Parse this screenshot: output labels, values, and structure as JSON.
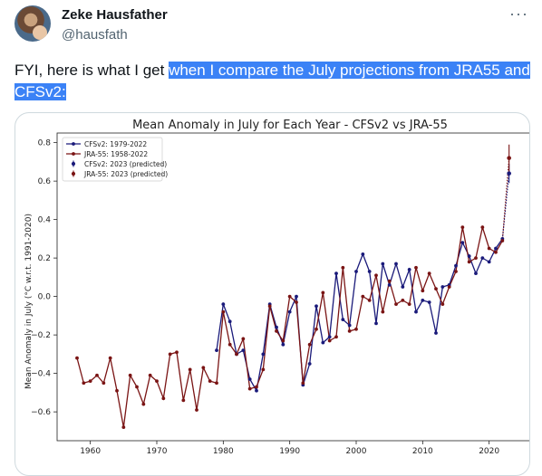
{
  "author": {
    "name": "Zeke Hausfather",
    "handle": "@hausfath"
  },
  "tweet": {
    "text_before": "FYI, here is what I get ",
    "text_highlight": "when I compare the July projections from JRA55 and CFSv2:"
  },
  "icons": {
    "more": "more-options-icon"
  },
  "colors": {
    "cfs": "#1a1a7a",
    "jra": "#7a1414"
  },
  "chart_data": {
    "type": "line",
    "title": "Mean Anomaly in July for Each Year - CFSv2 vs JRA-55",
    "xlabel": "",
    "ylabel": "Mean Anomaly in July (°C w.r.t. 1991-2020)",
    "xlim": [
      1955,
      2027
    ],
    "ylim": [
      -0.75,
      0.85
    ],
    "x_ticks": [
      1960,
      1970,
      1980,
      1990,
      2000,
      2010,
      2020
    ],
    "y_ticks": [
      -0.6,
      -0.4,
      -0.2,
      0.0,
      0.2,
      0.4,
      0.6,
      0.8
    ],
    "y_tick_labels": [
      "−0.6",
      "−0.4",
      "−0.2",
      "0.0",
      "0.2",
      "0.4",
      "0.6",
      "0.8"
    ],
    "grid": false,
    "legend_position": "top-left",
    "legend": [
      "CFSv2: 1979-2022",
      "JRA-55: 1958-2022",
      "CFSv2: 2023 (predicted)",
      "JRA-55: 2023 (predicted)"
    ],
    "series": [
      {
        "name": "CFSv2: 1979-2022",
        "x": [
          1979,
          1980,
          1981,
          1982,
          1983,
          1984,
          1985,
          1986,
          1987,
          1988,
          1989,
          1990,
          1991,
          1992,
          1993,
          1994,
          1995,
          1996,
          1997,
          1998,
          1999,
          2000,
          2001,
          2002,
          2003,
          2004,
          2005,
          2006,
          2007,
          2008,
          2009,
          2010,
          2011,
          2012,
          2013,
          2014,
          2015,
          2016,
          2017,
          2018,
          2019,
          2020,
          2021,
          2022
        ],
        "y": [
          -0.28,
          -0.04,
          -0.13,
          -0.3,
          -0.28,
          -0.43,
          -0.49,
          -0.3,
          -0.04,
          -0.16,
          -0.25,
          -0.08,
          0.0,
          -0.46,
          -0.35,
          -0.05,
          -0.24,
          -0.21,
          0.12,
          -0.12,
          -0.15,
          0.13,
          0.22,
          0.13,
          -0.14,
          0.17,
          0.06,
          0.17,
          0.05,
          0.14,
          -0.08,
          -0.02,
          -0.03,
          -0.19,
          0.05,
          0.06,
          0.16,
          0.28,
          0.21,
          0.12,
          0.2,
          0.18,
          0.25,
          0.3
        ]
      },
      {
        "name": "JRA-55: 1958-2022",
        "x": [
          1958,
          1959,
          1960,
          1961,
          1962,
          1963,
          1964,
          1965,
          1966,
          1967,
          1968,
          1969,
          1970,
          1971,
          1972,
          1973,
          1974,
          1975,
          1976,
          1977,
          1978,
          1979,
          1980,
          1981,
          1982,
          1983,
          1984,
          1985,
          1986,
          1987,
          1988,
          1989,
          1990,
          1991,
          1992,
          1993,
          1994,
          1995,
          1996,
          1997,
          1998,
          1999,
          2000,
          2001,
          2002,
          2003,
          2004,
          2005,
          2006,
          2007,
          2008,
          2009,
          2010,
          2011,
          2012,
          2013,
          2014,
          2015,
          2016,
          2017,
          2018,
          2019,
          2020,
          2021,
          2022
        ],
        "y": [
          -0.32,
          -0.45,
          -0.44,
          -0.41,
          -0.45,
          -0.32,
          -0.49,
          -0.68,
          -0.41,
          -0.47,
          -0.56,
          -0.41,
          -0.44,
          -0.53,
          -0.3,
          -0.29,
          -0.54,
          -0.38,
          -0.59,
          -0.37,
          -0.44,
          -0.45,
          -0.08,
          -0.25,
          -0.3,
          -0.22,
          -0.48,
          -0.47,
          -0.38,
          -0.05,
          -0.18,
          -0.23,
          0.0,
          -0.03,
          -0.45,
          -0.25,
          -0.17,
          0.02,
          -0.23,
          -0.21,
          0.15,
          -0.18,
          -0.17,
          0.0,
          -0.02,
          0.11,
          -0.08,
          0.08,
          -0.04,
          -0.02,
          -0.04,
          0.15,
          0.03,
          0.12,
          0.04,
          -0.04,
          0.05,
          0.13,
          0.36,
          0.18,
          0.2,
          0.36,
          0.25,
          0.23,
          0.29
        ]
      },
      {
        "name": "CFSv2: 2023 (predicted)",
        "x": [
          2023
        ],
        "y": [
          0.64
        ],
        "yerr": [
          0.05
        ]
      },
      {
        "name": "JRA-55: 2023 (predicted)",
        "x": [
          2023
        ],
        "y": [
          0.72
        ],
        "yerr": [
          0.07
        ]
      }
    ]
  }
}
